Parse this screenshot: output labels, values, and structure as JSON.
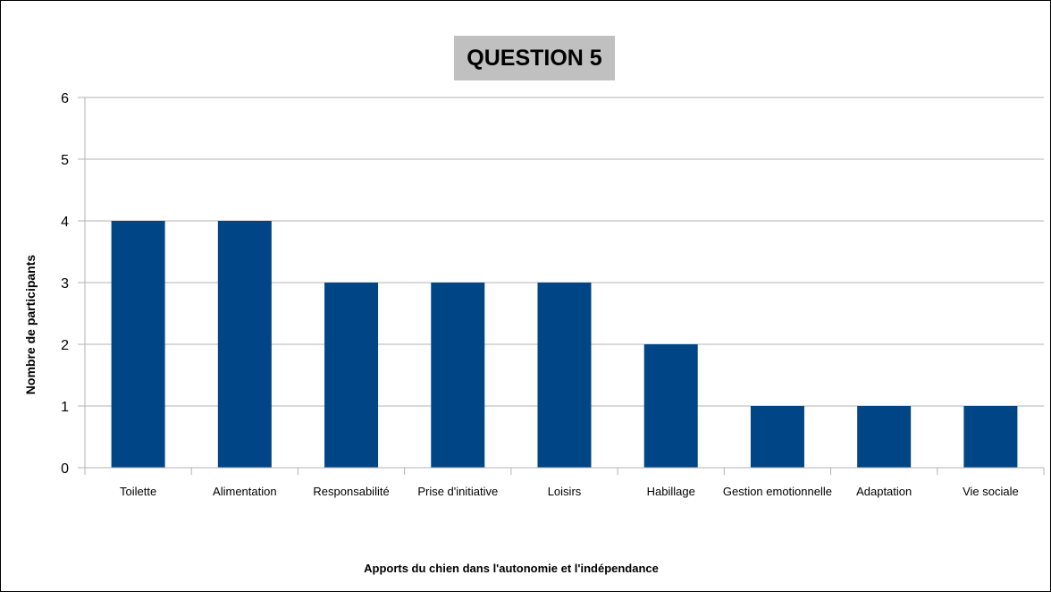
{
  "chart_data": {
    "type": "bar",
    "title": "QUESTION 5",
    "xlabel": "Apports du chien dans l'autonomie et l'indépendance",
    "ylabel": "Nombre de participants",
    "categories": [
      "Toilette",
      "Alimentation",
      "Responsabilité",
      "Prise d'initiative",
      "Loisirs",
      "Habillage",
      "Gestion emotionnelle",
      "Adaptation",
      "Vie sociale"
    ],
    "values": [
      4,
      4,
      3,
      3,
      3,
      2,
      1,
      1,
      1
    ],
    "ylim": [
      0,
      6
    ],
    "yticks": [
      "0",
      "1",
      "2",
      "3",
      "4",
      "5",
      "6"
    ],
    "grid": true,
    "legend": "none",
    "colors": {
      "bar": "#004586",
      "grid": "#b3b3b3",
      "axis": "#b3b3b3",
      "title_bg": "#c0c0c0"
    }
  }
}
